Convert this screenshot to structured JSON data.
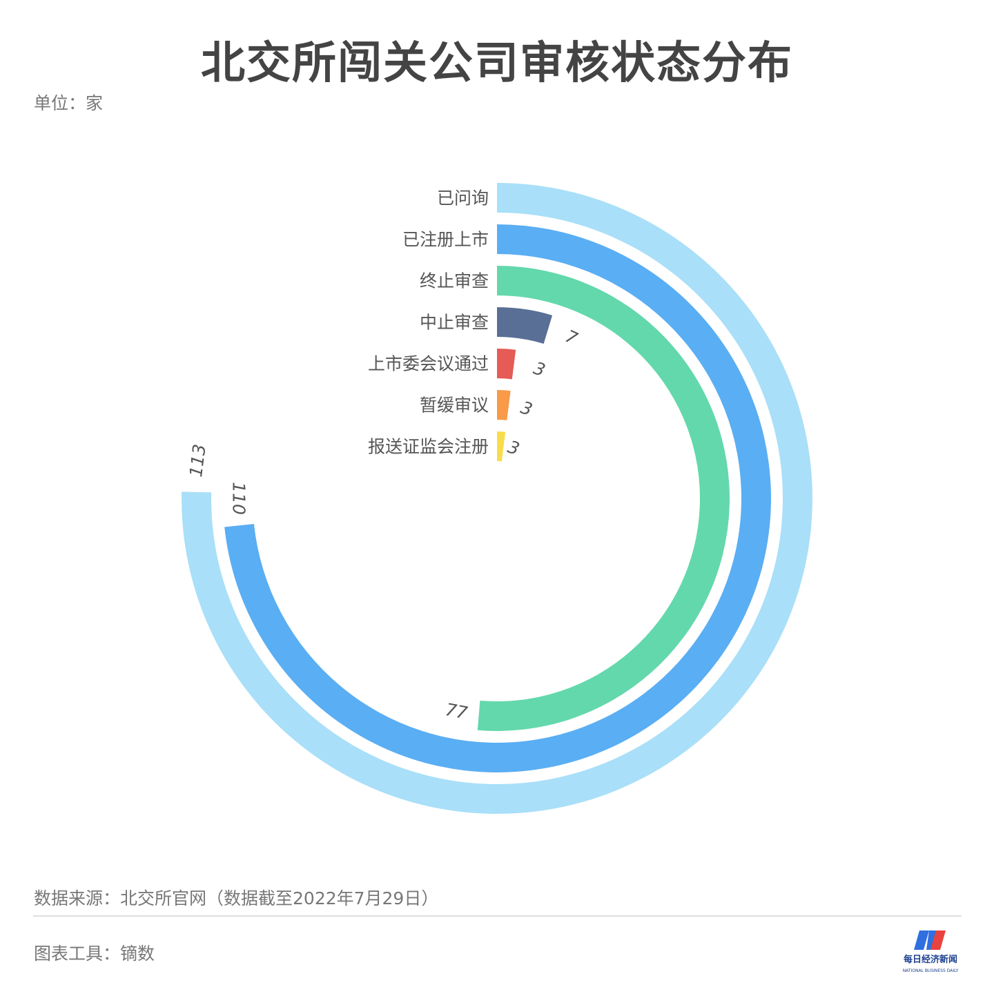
{
  "title": "北交所闯关公司审核状态分布",
  "unit": "单位：家",
  "source": "数据来源：北交所官网（数据截至2022年7月29日）",
  "tool": "图表工具：镝数",
  "logo": {
    "cn": "每日经济新闻",
    "en": "NATIONAL BUSINESS DAILY",
    "colors": [
      "#2f6fe0",
      "#e8433f"
    ]
  },
  "chart_data": {
    "type": "radial-bar",
    "max": 150,
    "categories": [
      "已问询",
      "已注册上市",
      "终止审查",
      "中止审查",
      "上市委会议通过",
      "暂缓审议",
      "报送证监会注册"
    ],
    "values": [
      113,
      110,
      77,
      7,
      3,
      3,
      3
    ],
    "labels": [
      "113",
      "110",
      "77",
      "7",
      "3",
      "3",
      "3"
    ],
    "colors": [
      "#a9dff8",
      "#5aaef3",
      "#63d8ac",
      "#5a6f96",
      "#e55b55",
      "#f89a48",
      "#f8dc4a"
    ]
  }
}
